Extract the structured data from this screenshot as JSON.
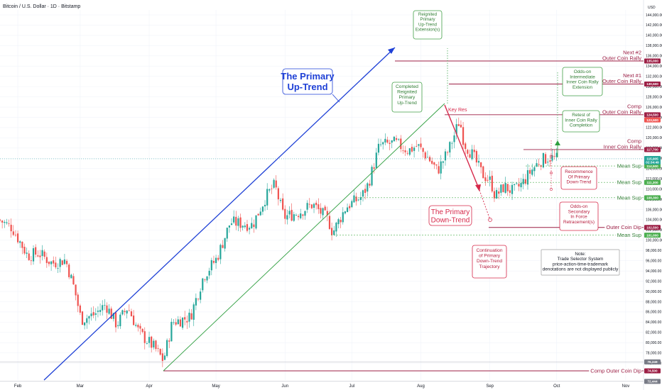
{
  "header": {
    "title": "Bitcoin / U.S. Dollar · 1D · Bitstamp"
  },
  "axis": {
    "currency": "USD"
  },
  "colors": {
    "up": "#26a69a",
    "down": "#ef5350",
    "primary_up": "#1e40d6",
    "green_line": "#2e9e3f",
    "red_line": "#d6284a",
    "maroon": "#9c1f45",
    "callout_green": "#43a047",
    "mean_sup": "#4caf50",
    "grid": "#f0f3fa"
  },
  "chart_data": {
    "type": "candlestick",
    "symbol": "Bitcoin / U.S. Dollar",
    "interval": "1D",
    "exchange": "Bitstamp",
    "ylim": [
      72000,
      146000
    ],
    "y_ticks": [
      76000,
      78000,
      80000,
      82000,
      84000,
      86000,
      88000,
      90000,
      92000,
      94000,
      96000,
      98000,
      100000,
      102000,
      104000,
      106000,
      108000,
      110000,
      112000,
      114000,
      116000,
      118000,
      120000,
      122000,
      124000,
      126000,
      128000,
      130000,
      132000,
      134000,
      136000,
      138000,
      140000,
      142000,
      144000
    ],
    "x_ticks": [
      "Feb",
      "Mar",
      "Apr",
      "May",
      "Jun",
      "Jul",
      "Aug",
      "Sep",
      "Oct",
      "Nov"
    ],
    "x_tick_days": [
      0,
      28,
      59,
      89,
      120,
      150,
      181,
      212,
      242,
      273
    ],
    "xlim_days": [
      -8,
      281
    ],
    "last_price_label": "115,905",
    "countdown_label": "02:34:49",
    "anchors": [
      {
        "d": -8,
        "p": 104000
      },
      {
        "d": -2,
        "p": 102500
      },
      {
        "d": 5,
        "p": 97000
      },
      {
        "d": 10,
        "p": 97500
      },
      {
        "d": 16,
        "p": 95500
      },
      {
        "d": 22,
        "p": 96200
      },
      {
        "d": 26,
        "p": 90500
      },
      {
        "d": 29,
        "p": 84500
      },
      {
        "d": 35,
        "p": 85500
      },
      {
        "d": 40,
        "p": 87500
      },
      {
        "d": 45,
        "p": 83500
      },
      {
        "d": 50,
        "p": 87000
      },
      {
        "d": 55,
        "p": 82000
      },
      {
        "d": 62,
        "p": 79000
      },
      {
        "d": 66,
        "p": 76500
      },
      {
        "d": 70,
        "p": 84000
      },
      {
        "d": 78,
        "p": 85000
      },
      {
        "d": 84,
        "p": 93000
      },
      {
        "d": 90,
        "p": 96500
      },
      {
        "d": 96,
        "p": 103500
      },
      {
        "d": 106,
        "p": 103000
      },
      {
        "d": 112,
        "p": 108500
      },
      {
        "d": 116,
        "p": 110800
      },
      {
        "d": 120,
        "p": 104500
      },
      {
        "d": 127,
        "p": 105500
      },
      {
        "d": 133,
        "p": 107000
      },
      {
        "d": 140,
        "p": 104000
      },
      {
        "d": 142,
        "p": 101500
      },
      {
        "d": 148,
        "p": 106500
      },
      {
        "d": 155,
        "p": 108500
      },
      {
        "d": 158,
        "p": 111000
      },
      {
        "d": 163,
        "p": 118500
      },
      {
        "d": 170,
        "p": 119000
      },
      {
        "d": 176,
        "p": 117500
      },
      {
        "d": 180,
        "p": 118500
      },
      {
        "d": 185,
        "p": 116000
      },
      {
        "d": 189,
        "p": 113500
      },
      {
        "d": 194,
        "p": 117500
      },
      {
        "d": 197,
        "p": 121000
      },
      {
        "d": 199,
        "p": 123500
      },
      {
        "d": 201,
        "p": 119000
      },
      {
        "d": 205,
        "p": 116500
      },
      {
        "d": 209,
        "p": 113000
      },
      {
        "d": 213,
        "p": 111500
      },
      {
        "d": 215,
        "p": 108500
      },
      {
        "d": 219,
        "p": 110500
      },
      {
        "d": 223,
        "p": 109500
      },
      {
        "d": 227,
        "p": 111000
      },
      {
        "d": 231,
        "p": 113500
      },
      {
        "d": 235,
        "p": 115500
      },
      {
        "d": 239,
        "p": 116200
      },
      {
        "d": 242,
        "p": 115900
      }
    ],
    "levels": [
      {
        "id": "next2",
        "name": "Next #2",
        "name2": "Outer Coin Rally",
        "value": 135000,
        "tag": "135,000",
        "color": "#9c1f45",
        "dashed": false
      },
      {
        "id": "next1",
        "name": "Next #1",
        "name2": "Outer Coin Rally",
        "value": 130500,
        "tag": "130,500",
        "color": "#9c1f45",
        "dashed": false
      },
      {
        "id": "comp_ocr",
        "name": "Comp",
        "name2": "Outer Coin Rally",
        "value": 124500,
        "tag": "124,500",
        "color": "#9c1f45",
        "dashed": false
      },
      {
        "id": "comp_icr",
        "name": "Comp",
        "name2": "Inner Coin Rally",
        "value": 117700,
        "tag": "117,700",
        "color": "#9c1f45",
        "dashed": false
      },
      {
        "id": "ms1",
        "name": "Mean Sup",
        "value": 114500,
        "tag": "114,500",
        "color": "#4caf50",
        "dashed": true
      },
      {
        "id": "ms2",
        "name": "Mean Sup",
        "value": 111300,
        "tag": "111,300",
        "color": "#4caf50",
        "dashed": true
      },
      {
        "id": "ms3",
        "name": "Mean Sup",
        "value": 108300,
        "tag": "108,300",
        "color": "#4caf50",
        "dashed": true
      },
      {
        "id": "ocd",
        "name": "Outer Coin Dip",
        "value": 102500,
        "tag": "102,500",
        "color": "#9c1f45",
        "dashed": false
      },
      {
        "id": "ms4",
        "name": "Mean Sup",
        "value": 101000,
        "tag": "101,000",
        "color": "#4caf50",
        "dashed": true
      },
      {
        "id": "comp_ocd",
        "name": "Comp Outer Coin Dip",
        "value": 74500,
        "tag": "74,500",
        "color": "#9c1f45",
        "dashed": false
      }
    ],
    "extra_tags": [
      {
        "value": 123500,
        "tag": "123,500",
        "color": "#ef5350"
      },
      {
        "value": 76249,
        "tag": "76,249",
        "color": "#787b86"
      },
      {
        "value": 72444,
        "tag": "72,444",
        "color": "#787b86"
      }
    ],
    "annotations": {
      "primary_up": "The Primary Up-Trend",
      "primary_down": "The Primary Down-Trend",
      "reignited": "Reignited Primary Up-Trend Extension(s)",
      "completed": "Completed Reignited Primary Up-Trend",
      "key_res": "Key Res",
      "odds_intermediate": "Odds-on Intermediate Inner Coin Rally Extension",
      "retest": "Retest of Inner Coin Rally Completion",
      "recommence": "Recommence Of Primary Down-Trend",
      "odds_secondary": "Odds-on Secondary In Force Retracement(s)",
      "continuation": "Continuation of Primary Down-Trend Trajectory",
      "note_title": "Note:",
      "note_body": "Trade Selector System price-action-time-trademark denotations are not displayed publicly"
    }
  }
}
